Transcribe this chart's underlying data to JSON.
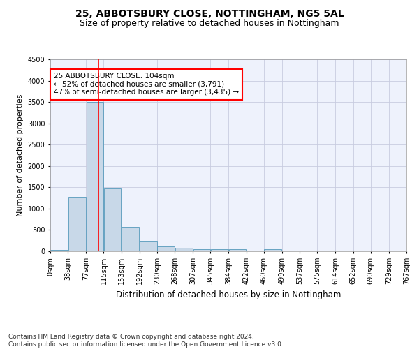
{
  "title": "25, ABBOTSBURY CLOSE, NOTTINGHAM, NG5 5AL",
  "subtitle": "Size of property relative to detached houses in Nottingham",
  "xlabel": "Distribution of detached houses by size in Nottingham",
  "ylabel": "Number of detached properties",
  "bar_color": "#c8d8e8",
  "bar_edge_color": "#5599bb",
  "background_color": "#eef2fc",
  "grid_color": "#c8cce0",
  "vline_x": 104,
  "vline_color": "red",
  "annotation_text": "25 ABBOTSBURY CLOSE: 104sqm\n← 52% of detached houses are smaller (3,791)\n47% of semi-detached houses are larger (3,435) →",
  "annotation_box_color": "red",
  "bin_edges": [
    0,
    38,
    77,
    115,
    153,
    192,
    230,
    268,
    307,
    345,
    384,
    422,
    460,
    499,
    537,
    575,
    614,
    652,
    690,
    729,
    767
  ],
  "bin_labels": [
    "0sqm",
    "38sqm",
    "77sqm",
    "115sqm",
    "153sqm",
    "192sqm",
    "230sqm",
    "268sqm",
    "307sqm",
    "345sqm",
    "384sqm",
    "422sqm",
    "460sqm",
    "499sqm",
    "537sqm",
    "575sqm",
    "614sqm",
    "652sqm",
    "690sqm",
    "729sqm",
    "767sqm"
  ],
  "bar_heights": [
    40,
    1280,
    3500,
    1480,
    575,
    240,
    115,
    80,
    55,
    45,
    45,
    0,
    50,
    0,
    0,
    0,
    0,
    0,
    0,
    0
  ],
  "ylim": [
    0,
    4500
  ],
  "yticks": [
    0,
    500,
    1000,
    1500,
    2000,
    2500,
    3000,
    3500,
    4000,
    4500
  ],
  "footnote": "Contains HM Land Registry data © Crown copyright and database right 2024.\nContains public sector information licensed under the Open Government Licence v3.0.",
  "title_fontsize": 10,
  "subtitle_fontsize": 9,
  "xlabel_fontsize": 8.5,
  "ylabel_fontsize": 8,
  "tick_fontsize": 7,
  "annotation_fontsize": 7.5,
  "footnote_fontsize": 6.5
}
